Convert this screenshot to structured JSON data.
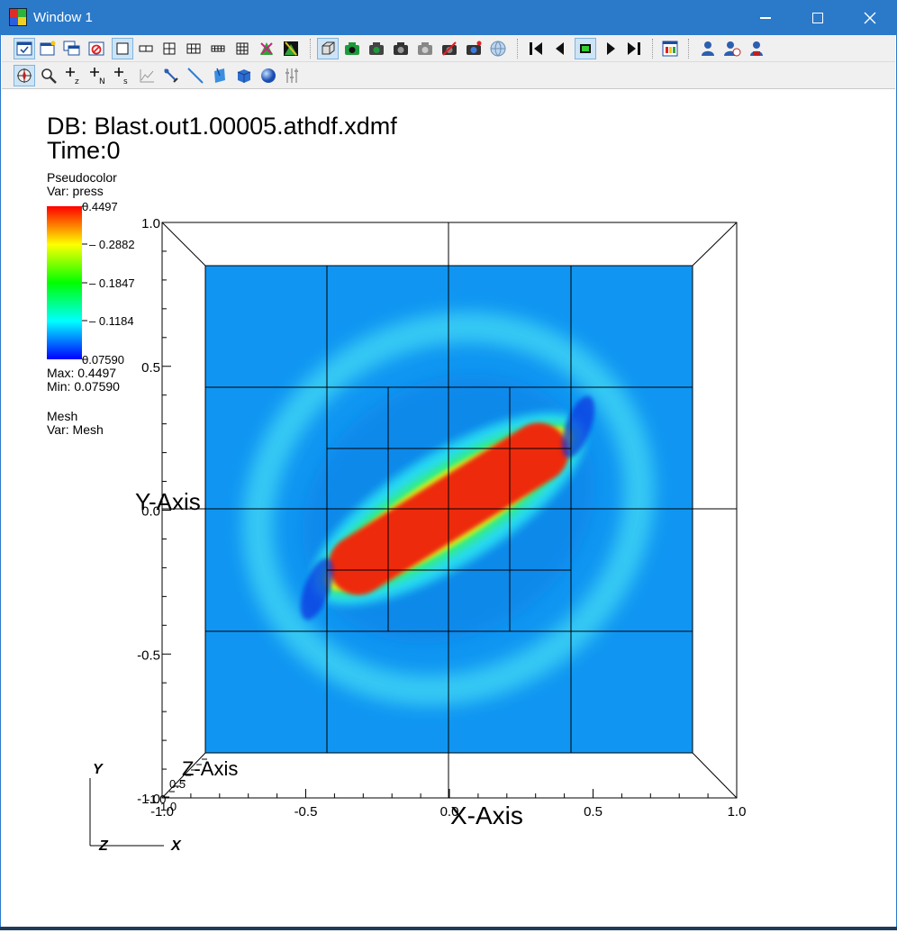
{
  "window": {
    "title": "Window 1"
  },
  "toolbar1": {
    "icons": [
      "active-window-icon",
      "new-window-icon",
      "clone-window-icon",
      "delete-window-icon",
      "layout-1x1-icon",
      "layout-1x2-icon",
      "layout-2x2-icon",
      "layout-2x3-icon",
      "layout-2x4-icon",
      "layout-3x3-icon",
      "lock-view-icon",
      "lock-time-icon",
      "3d-view-icon",
      "camera-save-icon",
      "camera-icon",
      "camera2-icon",
      "camera3-icon",
      "camera-invert-icon",
      "camera-light-icon",
      "globe-icon",
      "reverse-play-icon",
      "step-back-icon",
      "stop-icon",
      "play-icon",
      "step-forward-icon",
      "color-table-icon",
      "user-icon",
      "user-reset-icon",
      "user-lock-icon"
    ]
  },
  "toolbar2": {
    "icons": [
      "navigate-icon",
      "zoom-icon",
      "zone-pick-z-icon",
      "node-pick-n-icon",
      "spreadsheet-pick-s-icon",
      "lineout-icon",
      "point-tool-icon",
      "line-tool-icon",
      "plane-tool-icon",
      "box-tool-icon",
      "sphere-tool-icon",
      "axis-restriction-icon"
    ]
  },
  "plot": {
    "db_line": "DB: Blast.out1.00005.athdf.xdmf",
    "time_line": "Time:0",
    "legend1": {
      "type": "Pseudocolor",
      "var": "Var: press",
      "ticks": [
        "0.4497",
        "0.2882",
        "0.1847",
        "0.1184",
        "0.07590"
      ],
      "max": "Max:  0.4497",
      "min": "Min:  0.07590"
    },
    "legend2": {
      "type": "Mesh",
      "var": "Var: Mesh"
    },
    "x_axis_title": "X-Axis",
    "y_axis_title": "Y-Axis",
    "z_axis_title": "Z-Axis",
    "x_ticks": [
      "-1.0",
      "-0.5",
      "0.0",
      "0.5",
      "1.0"
    ],
    "y_ticks": [
      "1.0",
      "0.5",
      "0.0",
      "-0.5",
      "-1.0"
    ],
    "z_ticks": [
      "1.0",
      "0.5",
      "-1.0"
    ],
    "triad": {
      "y": "Y",
      "z": "Z",
      "x": "X"
    }
  },
  "colors": {
    "titlebar": "#2b79c9",
    "background_field": "#1096f2",
    "hot": "#ee2a0e"
  }
}
